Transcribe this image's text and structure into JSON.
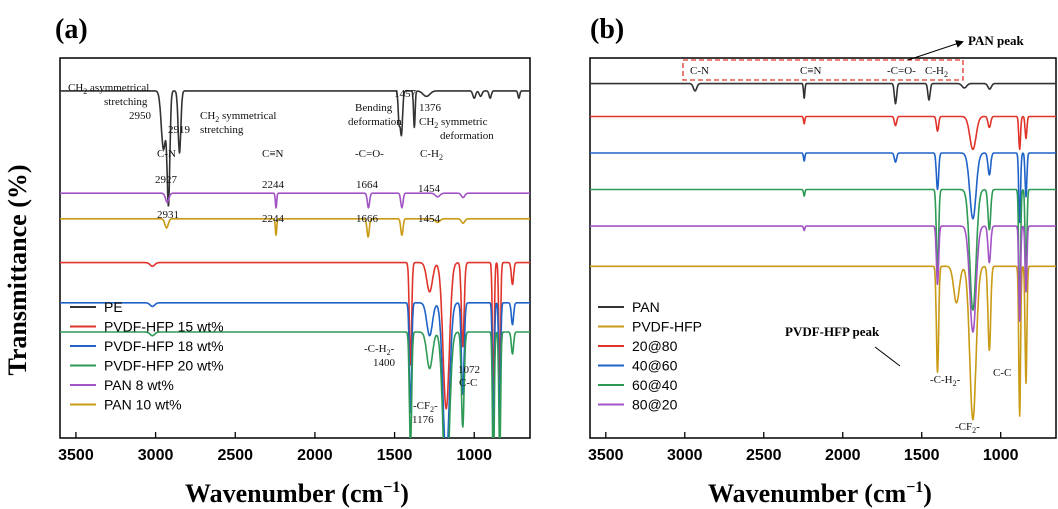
{
  "chart_data": [
    {
      "type": "line",
      "panel_label": "(a)",
      "xlabel": "Wavenumber (cm",
      "xlabel_sup": "−1",
      "xlabel_end": ")",
      "ylabel": "Transmittance (%)",
      "xlim": [
        3600,
        650
      ],
      "x_reversed": true,
      "xticks": [
        3500,
        3000,
        2500,
        2000,
        1500,
        1000
      ],
      "legend_position": "bottom-left",
      "series": [
        {
          "name": "PE",
          "color": "#333333",
          "baseline": 9.3,
          "peaks": [
            [
              2950,
              1.6,
              20
            ],
            [
              2919,
              3.0,
              12
            ],
            [
              2850,
              1.7,
              12
            ],
            [
              1472,
              0.8,
              8
            ],
            [
              1457,
              1.2,
              10
            ],
            [
              1376,
              1.0,
              7
            ],
            [
              1300,
              0.15,
              30
            ],
            [
              1000,
              0.2,
              12
            ],
            [
              960,
              0.15,
              12
            ],
            [
              900,
              0.2,
              10
            ],
            [
              720,
              0.2,
              8
            ]
          ]
        },
        {
          "name": "PVDF-HFP 15 wt%",
          "color": "#e0342b",
          "baseline": 4.6,
          "peaks": [
            [
              3020,
              0.1,
              20
            ],
            [
              1400,
              2.8,
              10
            ],
            [
              1280,
              0.8,
              25
            ],
            [
              1176,
              4.0,
              28
            ],
            [
              1072,
              2.3,
              12
            ],
            [
              880,
              3.6,
              8
            ],
            [
              840,
              3.2,
              8
            ],
            [
              760,
              0.6,
              10
            ]
          ]
        },
        {
          "name": "PVDF-HFP 18 wt%",
          "color": "#1f63c8",
          "baseline": 3.5,
          "peaks": [
            [
              3020,
              0.1,
              20
            ],
            [
              1400,
              3.0,
              10
            ],
            [
              1280,
              0.9,
              25
            ],
            [
              1176,
              4.3,
              28
            ],
            [
              1072,
              2.5,
              12
            ],
            [
              880,
              3.8,
              8
            ],
            [
              840,
              3.3,
              8
            ],
            [
              760,
              0.6,
              10
            ]
          ]
        },
        {
          "name": "PVDF-HFP 20 wt%",
          "color": "#2e9a55",
          "baseline": 2.7,
          "peaks": [
            [
              3020,
              0.1,
              20
            ],
            [
              1400,
              3.2,
              10
            ],
            [
              1280,
              1.0,
              25
            ],
            [
              1176,
              4.5,
              28
            ],
            [
              1072,
              2.6,
              12
            ],
            [
              880,
              4.1,
              8
            ],
            [
              840,
              3.4,
              8
            ],
            [
              760,
              0.6,
              10
            ]
          ]
        },
        {
          "name": "PAN 8 wt%",
          "color": "#a254c4",
          "baseline": 6.5,
          "peaks": [
            [
              2927,
              0.25,
              15
            ],
            [
              2244,
              0.4,
              6
            ],
            [
              1664,
              0.4,
              10
            ],
            [
              1454,
              0.4,
              10
            ],
            [
              1230,
              0.1,
              20
            ],
            [
              1070,
              0.12,
              15
            ]
          ]
        },
        {
          "name": "PAN 10 wt%",
          "color": "#c99a14",
          "baseline": 5.8,
          "peaks": [
            [
              2931,
              0.25,
              15
            ],
            [
              2244,
              0.45,
              6
            ],
            [
              1666,
              0.5,
              10
            ],
            [
              1454,
              0.45,
              10
            ],
            [
              1230,
              0.1,
              20
            ],
            [
              1070,
              0.12,
              15
            ]
          ]
        }
      ],
      "annotations": {
        "pe_ch2_asym_line1": "CH",
        "pe_ch2_asym_sub": "2",
        "pe_ch2_asym_line1b": " asymmetrical",
        "pe_ch2_asym_line2": "stretching",
        "pe_ch2_asym_value": "2950",
        "pe_ch2_sym_value": "2919",
        "pe_ch2_sym_line1": "CH",
        "pe_ch2_sym_sub": "2",
        "pe_ch2_sym_line1b": " symmetrical",
        "pe_ch2_sym_line2": "stretching",
        "pe_bend_value": "1457",
        "pe_bend_line1": "Bending",
        "pe_bend_line2": "deformation",
        "pe_1376_value": "1376",
        "pe_1376_line1": "CH",
        "pe_1376_sub": "2",
        "pe_1376_line1b": " symmetric",
        "pe_1376_line2": "deformation",
        "pan_cn": "C-N",
        "pan_cn_8": "2927",
        "pan_cn_10": "2931",
        "pan_ctn": "C≡N",
        "pan_ctn_8": "2244",
        "pan_ctn_10": "2244",
        "pan_co": "-C=O-",
        "pan_co_8": "1664",
        "pan_co_10": "1666",
        "pan_ch": "C-H",
        "pan_ch_sub": "2",
        "pan_ch_8": "1454",
        "pan_ch_10": "1454",
        "pvdf_ch2": "-C-H",
        "pvdf_ch2_sub": "2",
        "pvdf_ch2_end": "-",
        "pvdf_ch2_value": "1400",
        "pvdf_cf2": "-CF",
        "pvdf_cf2_sub": "2",
        "pvdf_cf2_end": "-",
        "pvdf_cf2_value": "1176",
        "pvdf_cc_value": "1072",
        "pvdf_cc": "C-C"
      }
    },
    {
      "type": "line",
      "panel_label": "(b)",
      "xlabel": "Wavenumber (cm",
      "xlabel_sup": "−1",
      "xlabel_end": ")",
      "xlim": [
        3600,
        650
      ],
      "x_reversed": true,
      "xticks": [
        3500,
        3000,
        2500,
        2000,
        1500,
        1000
      ],
      "legend_position": "bottom-left",
      "series": [
        {
          "name": "PAN",
          "color": "#333333",
          "baseline": 9.5,
          "peaks": [
            [
              2935,
              0.2,
              15
            ],
            [
              2244,
              0.4,
              6
            ],
            [
              1666,
              0.55,
              10
            ],
            [
              1454,
              0.45,
              10
            ],
            [
              1230,
              0.12,
              20
            ],
            [
              1070,
              0.15,
              15
            ]
          ]
        },
        {
          "name": "PVDF-HFP",
          "color": "#c99a14",
          "baseline": 4.5,
          "peaks": [
            [
              1400,
              2.9,
              10
            ],
            [
              1280,
              1.0,
              25
            ],
            [
              1176,
              4.2,
              28
            ],
            [
              1072,
              2.3,
              12
            ],
            [
              880,
              4.1,
              8
            ],
            [
              840,
              3.2,
              8
            ]
          ]
        },
        {
          "name": "20@80",
          "color": "#e0342b",
          "baseline": 8.6,
          "peaks": [
            [
              2244,
              0.2,
              6
            ],
            [
              1666,
              0.25,
              10
            ],
            [
              1400,
              0.4,
              10
            ],
            [
              1176,
              0.9,
              28
            ],
            [
              1072,
              0.3,
              12
            ],
            [
              880,
              0.9,
              8
            ],
            [
              840,
              0.6,
              8
            ]
          ]
        },
        {
          "name": "40@60",
          "color": "#1f63c8",
          "baseline": 7.6,
          "peaks": [
            [
              2244,
              0.22,
              6
            ],
            [
              1666,
              0.25,
              10
            ],
            [
              1400,
              1.0,
              10
            ],
            [
              1176,
              1.8,
              28
            ],
            [
              1072,
              0.6,
              12
            ],
            [
              880,
              1.9,
              8
            ],
            [
              840,
              1.2,
              8
            ]
          ]
        },
        {
          "name": "60@40",
          "color": "#2e9a55",
          "baseline": 6.6,
          "peaks": [
            [
              2244,
              0.18,
              6
            ],
            [
              1400,
              2.2,
              10
            ],
            [
              1176,
              3.3,
              28
            ],
            [
              1072,
              1.1,
              12
            ],
            [
              880,
              3.4,
              8
            ],
            [
              840,
              2.3,
              8
            ]
          ]
        },
        {
          "name": "80@20",
          "color": "#a254c4",
          "baseline": 5.6,
          "peaks": [
            [
              2244,
              0.12,
              6
            ],
            [
              1400,
              1.6,
              10
            ],
            [
              1176,
              2.9,
              28
            ],
            [
              1072,
              1.0,
              12
            ],
            [
              880,
              2.6,
              8
            ],
            [
              840,
              1.8,
              8
            ]
          ]
        }
      ],
      "annotations": {
        "pan_peak": "PAN peak",
        "box_cn": "C-N",
        "box_ctn": "C≡N",
        "box_co": "-C=O-",
        "box_ch": "C-H",
        "box_ch_sub": "2",
        "pvdf_peak": "PVDF-HFP peak",
        "pvdf_ch2": "-C-H",
        "pvdf_ch2_sub": "2",
        "pvdf_ch2_end": "-",
        "pvdf_cf2": "-CF",
        "pvdf_cf2_sub": "2",
        "pvdf_cf2_end": "-",
        "pvdf_cc": "C-C"
      }
    }
  ]
}
